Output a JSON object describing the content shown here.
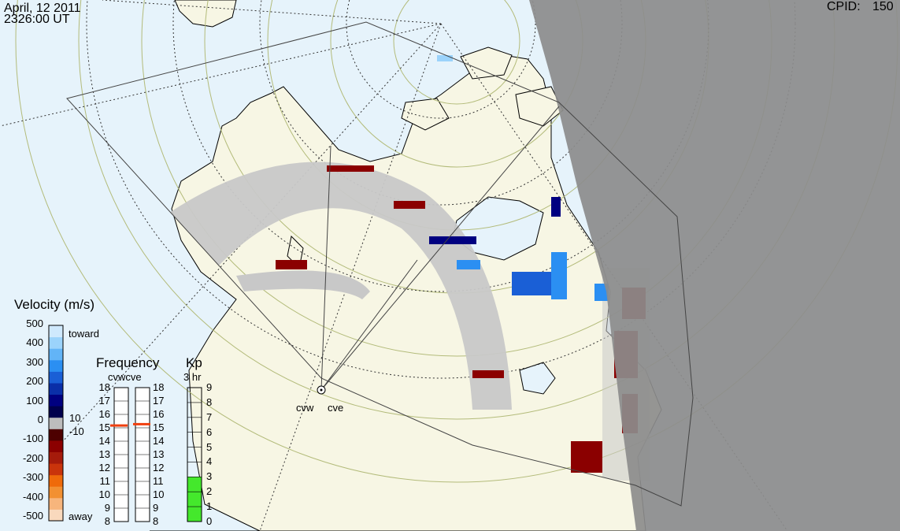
{
  "header": {
    "date": "April, 12 2011",
    "time": "2326:00 UT",
    "cpid_label": "CPID:",
    "cpid_value": "150"
  },
  "radars": [
    "cvw",
    "cve"
  ],
  "velocity_scale": {
    "title": "Velocity (m/s)",
    "ticks": [
      "500",
      "400",
      "300",
      "200",
      "100",
      "0",
      "-100",
      "-200",
      "-300",
      "-400",
      "-500"
    ],
    "toward_label": "toward",
    "away_label": "away",
    "inner_ticks": [
      "10",
      "-10"
    ],
    "colors": [
      "#f9d9bd",
      "#f7b57c",
      "#f29032",
      "#ef6a0a",
      "#c9340b",
      "#a51b0b",
      "#8b0000",
      "#4d0000",
      "#bdbdbd",
      "#00004d",
      "#000080",
      "#0a2fa8",
      "#1a5fd6",
      "#2b8ff2",
      "#62b4f7",
      "#9bd3fb",
      "#cfe9fd"
    ]
  },
  "frequency": {
    "title": "Frequency",
    "subtitle": "cvwcve",
    "ticks": [
      "18",
      "17",
      "16",
      "15",
      "14",
      "13",
      "12",
      "11",
      "10",
      "9",
      "8"
    ],
    "cvw_value": 15.2,
    "cve_value": 15.3,
    "marker_color": "#f04010"
  },
  "kp": {
    "title": "Kp",
    "subtitle": "3 hr",
    "ticks": [
      "9",
      "8",
      "7",
      "6",
      "5",
      "4",
      "3",
      "2",
      "1",
      "0"
    ],
    "value": 3,
    "fill_color": "#44e82c"
  },
  "map_colors": {
    "ocean": "#e6f3fb",
    "land": "#f7f6e4",
    "night": "#8c8c8c",
    "groundscatter": "#c8c8c8"
  }
}
